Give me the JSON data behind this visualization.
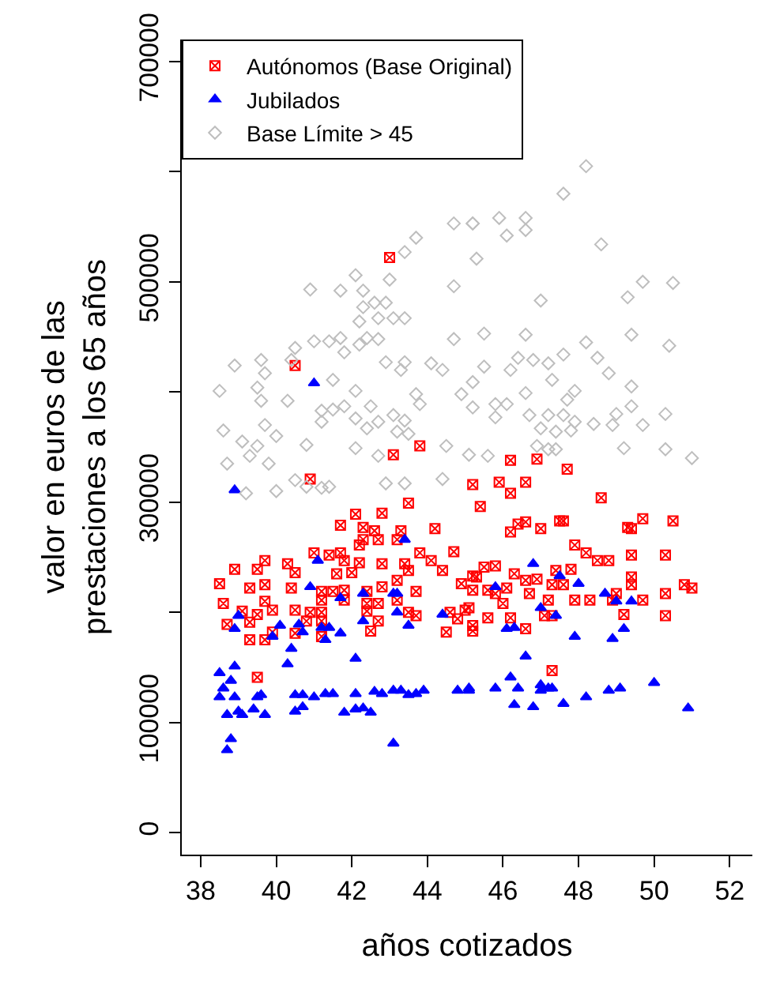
{
  "chart_data": {
    "type": "scatter",
    "xlabel": "años cotizados",
    "ylabel": "valor en euros de las\nprestaciones a los 65 años",
    "xlim": [
      37.5,
      52.6
    ],
    "xticks": [
      38,
      40,
      42,
      44,
      46,
      48,
      50,
      52
    ],
    "ylim": [
      -20000,
      720000
    ],
    "yticks": [
      0,
      100000,
      {
        "value": 200000,
        "label": null
      },
      300000,
      {
        "value": 400000,
        "label": null
      },
      500000,
      {
        "value": 600000,
        "label": null
      },
      700000
    ],
    "legend": "top left",
    "series": [
      {
        "name": "Autónomos (Base Original)",
        "color": "#ff0000",
        "marker": "cross",
        "x": [
          43.0,
          40.5,
          43.1,
          43.8,
          40.9,
          43.5,
          42.1,
          42.8,
          41.7,
          42.3,
          42.6,
          43.3,
          44.2,
          42.3,
          42.7,
          43.2,
          41.0,
          41.4,
          41.7,
          42.2,
          43.8,
          44.7,
          39.7,
          40.3,
          41.8,
          42.2,
          42.8,
          43.4,
          44.1,
          38.9,
          39.5,
          40.5,
          41.6,
          42.0,
          43.5,
          44.4,
          43.2,
          38.5,
          39.3,
          39.7,
          40.4,
          41.2,
          41.5,
          41.8,
          42.4,
          42.8,
          43.7,
          44.9,
          45.3,
          38.6,
          39.7,
          41.2,
          41.8,
          42.4,
          42.7,
          43.2,
          39.1,
          39.5,
          39.9,
          40.5,
          40.9,
          41.2,
          42.4,
          43.5,
          44.6,
          45.1,
          38.7,
          39.3,
          40.8,
          41.2,
          42.7,
          43.7,
          44.8,
          39.3,
          39.7,
          39.9,
          40.5,
          41.2,
          42.5,
          44.5,
          45.2,
          39.5,
          46.2,
          47.7,
          46.9,
          45.2,
          45.9,
          46.6,
          46.2,
          48.6,
          45.4,
          49.7,
          50.5,
          46.4,
          46.6,
          47.5,
          47.6,
          49.3,
          49.4,
          46.2,
          47.0,
          47.9,
          48.2,
          48.5,
          48.8,
          49.4,
          50.3,
          45.5,
          45.8,
          45.2,
          46.3,
          47.8,
          47.4,
          46.6,
          46.9,
          49.4,
          49.4,
          51.0,
          45.2,
          45.6,
          46.1,
          46.7,
          47.3,
          47.6,
          49.0,
          50.3,
          45.8,
          47.2,
          47.9,
          48.3,
          48.9,
          49.7,
          46.0,
          45.0,
          47.1,
          47.3,
          49.2,
          50.3,
          45.6,
          46.2,
          45.2,
          46.6,
          47.3,
          50.8
        ],
        "values": [
          522000,
          424000,
          343000,
          351000,
          321000,
          299000,
          289000,
          290000,
          279000,
          277000,
          274000,
          274000,
          276000,
          266000,
          266000,
          266000,
          254000,
          252000,
          254000,
          261000,
          254000,
          255000,
          247000,
          244000,
          247000,
          245000,
          244000,
          244000,
          247000,
          239000,
          239000,
          236000,
          235000,
          236000,
          238000,
          238000,
          229000,
          226000,
          222000,
          225000,
          222000,
          219000,
          219000,
          220000,
          219000,
          223000,
          219000,
          226000,
          232000,
          208000,
          210000,
          211000,
          211000,
          208000,
          208000,
          211000,
          201000,
          198000,
          202000,
          202000,
          200000,
          200000,
          201000,
          200000,
          200000,
          204000,
          189000,
          191000,
          192000,
          192000,
          192000,
          197000,
          194000,
          175000,
          175000,
          182000,
          181000,
          178000,
          183000,
          182000,
          183000,
          141000,
          338000,
          330000,
          339000,
          316000,
          318000,
          318000,
          308000,
          304000,
          296000,
          285000,
          283000,
          280000,
          282000,
          283000,
          283000,
          277000,
          276000,
          273000,
          276000,
          261000,
          254000,
          247000,
          247000,
          252000,
          252000,
          241000,
          242000,
          233000,
          235000,
          239000,
          238000,
          229000,
          230000,
          232000,
          225000,
          222000,
          220000,
          220000,
          222000,
          217000,
          225000,
          225000,
          217000,
          217000,
          217000,
          211000,
          211000,
          211000,
          211000,
          211000,
          208000,
          202000,
          197000,
          197000,
          198000,
          197000,
          195000,
          195000,
          188000,
          185000,
          147000,
          225000
        ]
      },
      {
        "name": "Jubilados",
        "color": "#0000ff",
        "marker": "triangle",
        "x": [
          41.0,
          38.9,
          43.4,
          41.1,
          40.9,
          41.7,
          42.3,
          43.1,
          43.2,
          43.2,
          44.4,
          39.0,
          42.3,
          38.9,
          40.1,
          40.6,
          39.9,
          40.7,
          41.2,
          41.4,
          41.7,
          41.3,
          43.5,
          40.4,
          40.3,
          42.1,
          38.5,
          38.9,
          38.6,
          38.8,
          38.5,
          38.9,
          39.5,
          39.6,
          40.5,
          40.7,
          41.0,
          41.3,
          41.5,
          42.1,
          42.6,
          42.8,
          43.1,
          43.3,
          43.5,
          43.7,
          43.9,
          44.8,
          45.1,
          38.7,
          39.0,
          39.1,
          39.4,
          39.7,
          40.5,
          40.7,
          41.8,
          42.1,
          42.3,
          42.5,
          38.8,
          38.7,
          43.1,
          46.8,
          47.5,
          48.0,
          45.8,
          48.7,
          49.0,
          49.4,
          47.0,
          47.4,
          46.1,
          46.3,
          47.9,
          48.9,
          49.2,
          46.6,
          46.2,
          45.1,
          45.8,
          46.4,
          47.0,
          47.0,
          47.2,
          47.3,
          48.2,
          48.8,
          49.1,
          50.0,
          46.3,
          46.8,
          47.6,
          50.9
        ],
        "values": [
          408000,
          311000,
          266000,
          247000,
          223000,
          213000,
          217000,
          217000,
          217000,
          200000,
          198000,
          197000,
          192000,
          185000,
          188000,
          189000,
          178000,
          182000,
          186000,
          186000,
          181000,
          175000,
          188000,
          167000,
          153000,
          158000,
          145000,
          151000,
          131000,
          138000,
          123000,
          123000,
          123000,
          125000,
          125000,
          125000,
          123000,
          126000,
          126000,
          126000,
          128000,
          126000,
          129000,
          129000,
          125000,
          126000,
          129000,
          129000,
          129000,
          107000,
          110000,
          107000,
          112000,
          107000,
          110000,
          114000,
          109000,
          112000,
          113000,
          109000,
          85000,
          75000,
          81000,
          244000,
          233000,
          226000,
          223000,
          217000,
          210000,
          210000,
          204000,
          197000,
          185000,
          186000,
          178000,
          176000,
          185000,
          160000,
          141000,
          131000,
          131000,
          131000,
          134000,
          129000,
          131000,
          131000,
          123000,
          129000,
          131000,
          136000,
          116000,
          114000,
          117000,
          113000
        ]
      },
      {
        "name": "Base Límite > 45",
        "color": "#bebebe",
        "marker": "diamond",
        "x": [
          44.7,
          45.2,
          43.7,
          43.4,
          43.0,
          44.7,
          40.9,
          41.7,
          42.1,
          42.3,
          42.6,
          42.3,
          42.9,
          42.7,
          43.1,
          43.4,
          42.2,
          41.0,
          41.4,
          41.7,
          42.4,
          42.7,
          42.2,
          41.8,
          40.5,
          44.7,
          39.6,
          38.9,
          39.7,
          40.4,
          42.9,
          43.4,
          43.3,
          44.1,
          44.4,
          41.5,
          39.5,
          38.5,
          42.1,
          43.7,
          44.9,
          39.6,
          40.3,
          42.5,
          43.8,
          41.2,
          41.5,
          41.8,
          41.2,
          42.1,
          43.1,
          43.4,
          38.6,
          39.7,
          42.7,
          39.1,
          40.0,
          40.8,
          42.4,
          43.2,
          43.5,
          39.5,
          39.3,
          42.1,
          44.5,
          38.7,
          39.8,
          42.7,
          39.2,
          40.0,
          40.5,
          40.8,
          41.2,
          41.4,
          42.9,
          43.4,
          44.4,
          48.2,
          47.6,
          45.2,
          45.9,
          46.6,
          46.1,
          46.6,
          48.6,
          45.3,
          49.7,
          50.5,
          49.3,
          47.0,
          45.5,
          46.6,
          48.2,
          49.4,
          50.4,
          46.4,
          46.8,
          47.2,
          47.6,
          48.5,
          45.5,
          46.2,
          48.8,
          45.2,
          47.3,
          47.9,
          49.4,
          46.6,
          47.7,
          49.4,
          45.2,
          45.8,
          46.1,
          46.7,
          47.2,
          47.6,
          49.0,
          50.3,
          45.8,
          47.9,
          48.4,
          48.9,
          49.7,
          47.0,
          47.4,
          47.8,
          46.9,
          47.2,
          47.4,
          49.2,
          50.3,
          51.0,
          45.6,
          45.1
        ],
        "values": [
          553000,
          553000,
          540000,
          527000,
          502000,
          496000,
          493000,
          492000,
          506000,
          492000,
          481000,
          477000,
          481000,
          467000,
          467000,
          467000,
          464000,
          446000,
          446000,
          449000,
          449000,
          448000,
          443000,
          436000,
          440000,
          448000,
          429000,
          424000,
          417000,
          429000,
          427000,
          427000,
          420000,
          426000,
          420000,
          411000,
          404000,
          401000,
          401000,
          398000,
          398000,
          392000,
          392000,
          387000,
          389000,
          383000,
          384000,
          387000,
          373000,
          376000,
          379000,
          374000,
          365000,
          370000,
          373000,
          355000,
          360000,
          352000,
          367000,
          364000,
          362000,
          351000,
          342000,
          349000,
          351000,
          335000,
          335000,
          342000,
          308000,
          310000,
          320000,
          314000,
          313000,
          314000,
          317000,
          317000,
          321000,
          605000,
          580000,
          553000,
          558000,
          558000,
          542000,
          547000,
          534000,
          521000,
          500000,
          499000,
          486000,
          483000,
          453000,
          452000,
          445000,
          452000,
          442000,
          431000,
          429000,
          426000,
          434000,
          431000,
          423000,
          420000,
          417000,
          409000,
          411000,
          401000,
          405000,
          399000,
          393000,
          387000,
          386000,
          389000,
          389000,
          379000,
          379000,
          379000,
          380000,
          380000,
          377000,
          373000,
          371000,
          370000,
          370000,
          367000,
          364000,
          365000,
          351000,
          348000,
          348000,
          349000,
          348000,
          340000,
          342000,
          343000
        ]
      }
    ]
  }
}
